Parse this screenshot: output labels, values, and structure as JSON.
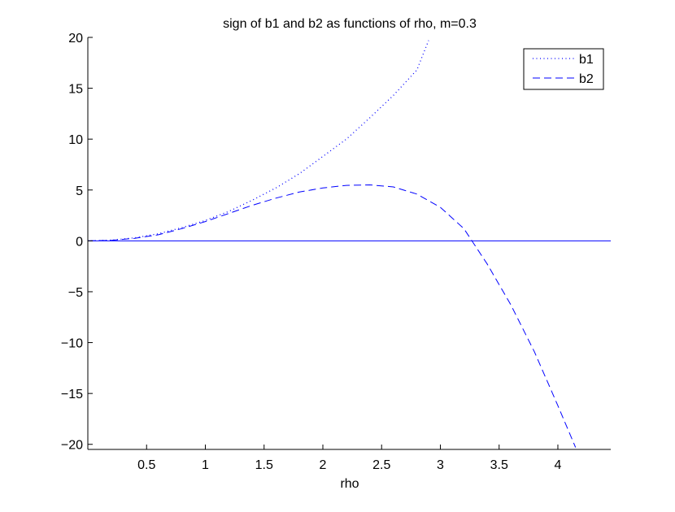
{
  "chart_data": {
    "type": "line",
    "title": "sign of b1 and b2 as functions of rho, m=0.3",
    "xlabel": "rho",
    "ylabel": "",
    "xlim": [
      0.0,
      4.45
    ],
    "ylim": [
      -20.5,
      20
    ],
    "xticks": [
      0.5,
      1,
      1.5,
      2,
      2.5,
      3,
      3.5,
      4
    ],
    "xtick_labels": [
      "0.5",
      "1",
      "1.5",
      "2",
      "2.5",
      "3",
      "3.5",
      "4"
    ],
    "yticks": [
      20,
      15,
      10,
      5,
      0,
      -5,
      -10,
      -15,
      -20
    ],
    "ytick_labels": [
      "20",
      "15",
      "10",
      "5",
      "0",
      "−5",
      "−10",
      "−15",
      "−20"
    ],
    "grid": false,
    "legend_position": "top-right",
    "reference_line": {
      "y": 0,
      "color": "#0000ff"
    },
    "series": [
      {
        "name": "b1",
        "style": "dotted",
        "color": "#0000ff",
        "x": [
          0.0,
          0.2,
          0.4,
          0.6,
          0.8,
          1.0,
          1.2,
          1.4,
          1.6,
          1.8,
          2.0,
          2.2,
          2.4,
          2.6,
          2.8,
          2.9
        ],
        "y": [
          0.0,
          0.07,
          0.3,
          0.7,
          1.3,
          2.0,
          2.9,
          4.0,
          5.2,
          6.6,
          8.3,
          10.0,
          12.1,
          14.3,
          16.8,
          19.7
        ]
      },
      {
        "name": "b2",
        "style": "dashed",
        "color": "#0000ff",
        "x": [
          0.0,
          0.2,
          0.4,
          0.6,
          0.8,
          1.0,
          1.2,
          1.4,
          1.6,
          1.8,
          2.0,
          2.2,
          2.4,
          2.6,
          2.8,
          3.0,
          3.2,
          3.4,
          3.6,
          3.8,
          4.0,
          4.15
        ],
        "y": [
          0.0,
          0.05,
          0.25,
          0.6,
          1.2,
          1.9,
          2.7,
          3.5,
          4.2,
          4.8,
          5.2,
          5.45,
          5.5,
          5.3,
          4.6,
          3.3,
          1.2,
          -2.3,
          -6.3,
          -10.9,
          -16.2,
          -20.3
        ]
      }
    ]
  }
}
